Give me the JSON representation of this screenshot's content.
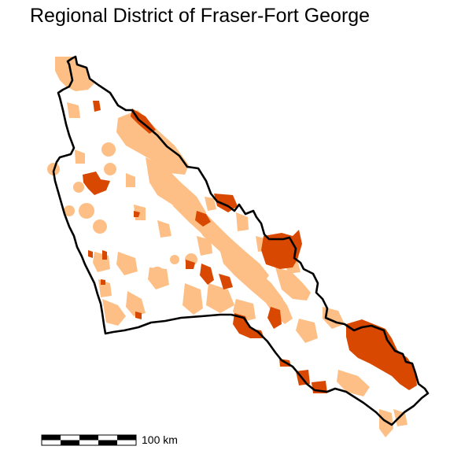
{
  "title": "Regional District of Fraser-Fort George",
  "scale_bar": {
    "label": "100 km",
    "segments": 5
  },
  "legend_colors": {
    "light_patches": "#fdbf85",
    "dark_patches": "#d94801",
    "boundary": "#000000"
  }
}
